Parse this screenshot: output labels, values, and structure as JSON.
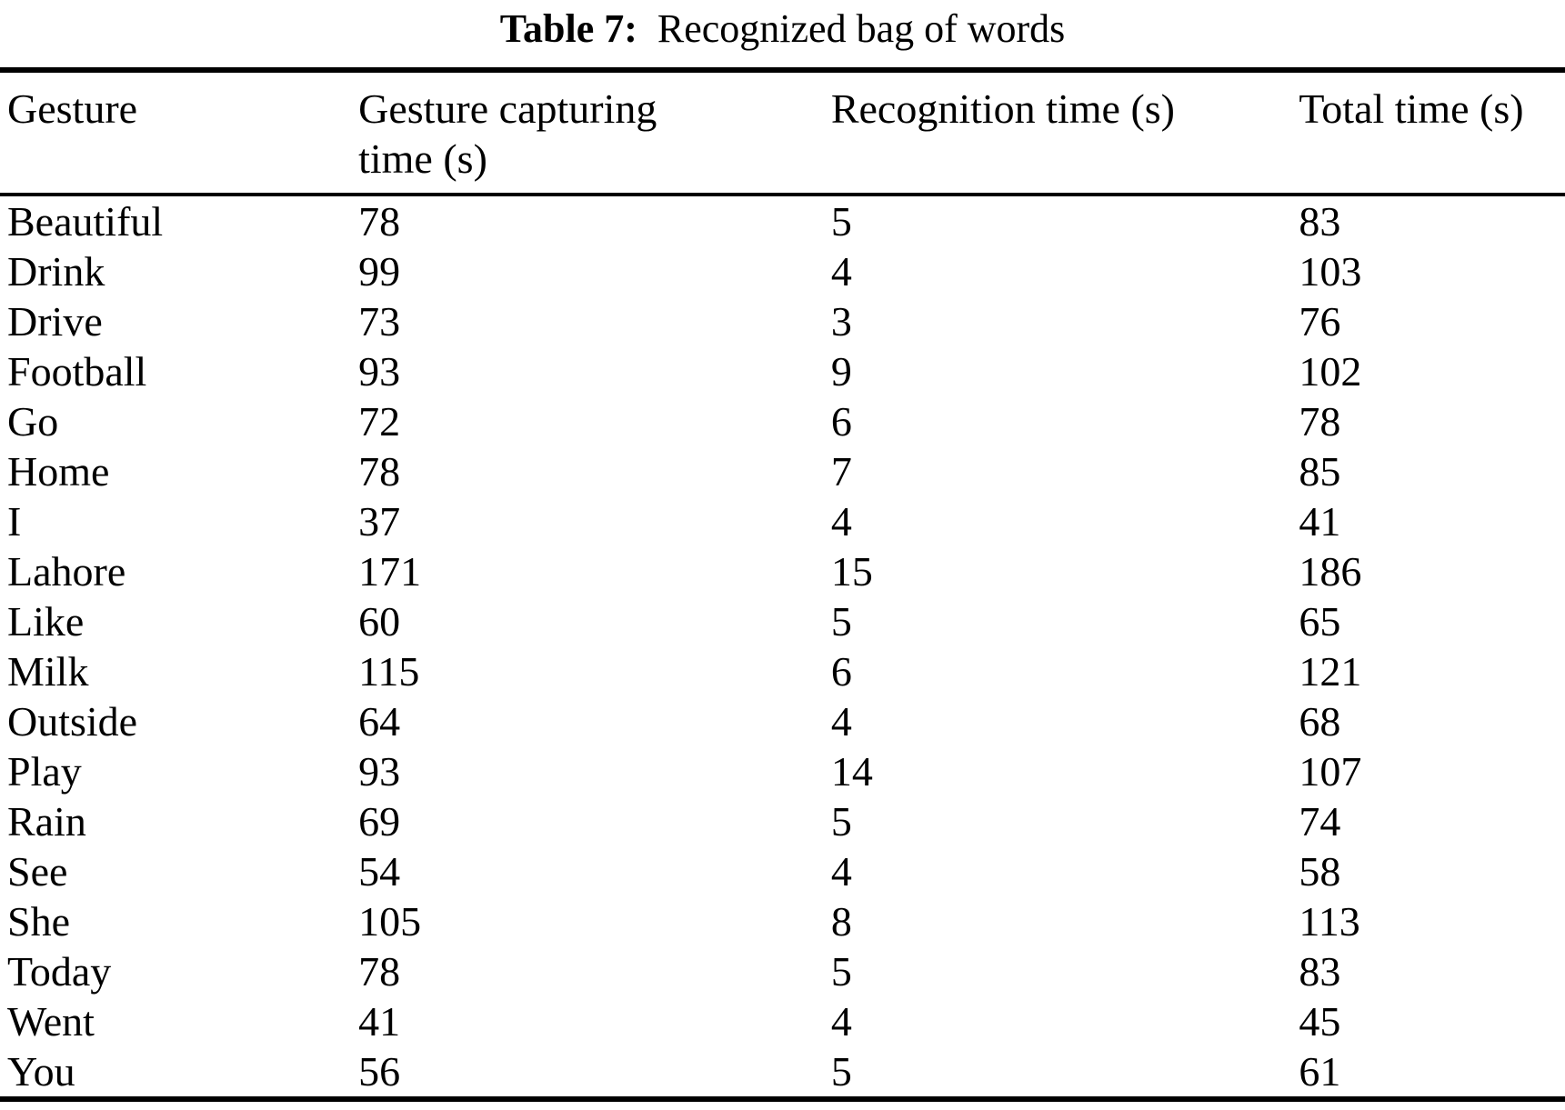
{
  "page": {
    "background": "#ffffff",
    "text_color": "#000000"
  },
  "caption": {
    "label": "Table 7:",
    "title": "Recognized bag of words"
  },
  "table": {
    "columns": [
      "Gesture",
      "Gesture capturing\ntime (s)",
      "Recognition time (s)",
      "Total time (s)"
    ],
    "rows": [
      [
        "Beautiful",
        "78",
        "5",
        "83"
      ],
      [
        "Drink",
        "99",
        "4",
        "103"
      ],
      [
        "Drive",
        "73",
        "3",
        "76"
      ],
      [
        "Football",
        "93",
        "9",
        "102"
      ],
      [
        "Go",
        "72",
        "6",
        "78"
      ],
      [
        "Home",
        "78",
        "7",
        "85"
      ],
      [
        "I",
        "37",
        "4",
        "41"
      ],
      [
        "Lahore",
        "171",
        "15",
        "186"
      ],
      [
        "Like",
        "60",
        "5",
        "65"
      ],
      [
        "Milk",
        "115",
        "6",
        "121"
      ],
      [
        "Outside",
        "64",
        "4",
        "68"
      ],
      [
        "Play",
        "93",
        "14",
        "107"
      ],
      [
        "Rain",
        "69",
        "5",
        "74"
      ],
      [
        "See",
        "54",
        "4",
        "58"
      ],
      [
        "She",
        "105",
        "8",
        "113"
      ],
      [
        "Today",
        "78",
        "5",
        "83"
      ],
      [
        "Went",
        "41",
        "4",
        "45"
      ],
      [
        "You",
        "56",
        "5",
        "61"
      ]
    ]
  },
  "chart_data": {
    "type": "table",
    "title": "Table 7: Recognized bag of words",
    "columns": [
      "Gesture",
      "Gesture capturing time (s)",
      "Recognition time (s)",
      "Total time (s)"
    ],
    "rows": [
      [
        "Beautiful",
        78,
        5,
        83
      ],
      [
        "Drink",
        99,
        4,
        103
      ],
      [
        "Drive",
        73,
        3,
        76
      ],
      [
        "Football",
        93,
        9,
        102
      ],
      [
        "Go",
        72,
        6,
        78
      ],
      [
        "Home",
        78,
        7,
        85
      ],
      [
        "I",
        37,
        4,
        41
      ],
      [
        "Lahore",
        171,
        15,
        186
      ],
      [
        "Like",
        60,
        5,
        65
      ],
      [
        "Milk",
        115,
        6,
        121
      ],
      [
        "Outside",
        64,
        4,
        68
      ],
      [
        "Play",
        93,
        14,
        107
      ],
      [
        "Rain",
        69,
        5,
        74
      ],
      [
        "See",
        54,
        4,
        58
      ],
      [
        "She",
        105,
        8,
        113
      ],
      [
        "Today",
        78,
        5,
        83
      ],
      [
        "Went",
        41,
        4,
        45
      ],
      [
        "You",
        56,
        5,
        61
      ]
    ]
  }
}
